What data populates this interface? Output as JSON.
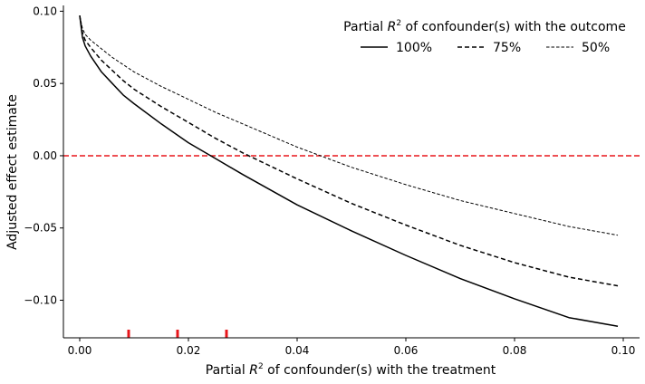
{
  "chart_data": {
    "type": "line",
    "xlabel": {
      "pre": "Partial ",
      "var": "R",
      "sup": "2",
      "post": " of confounder(s) with the treatment"
    },
    "ylabel": "Adjusted effect estimate",
    "xlim": [
      -0.003,
      0.103
    ],
    "ylim": [
      -0.126,
      0.104
    ],
    "xticks": [
      0.0,
      0.02,
      0.04,
      0.06,
      0.08,
      0.1
    ],
    "xtick_labels": [
      "0.00",
      "0.02",
      "0.04",
      "0.06",
      "0.08",
      "0.10"
    ],
    "yticks": [
      -0.1,
      -0.05,
      0.0,
      0.05,
      0.1
    ],
    "ytick_labels": [
      "−0.10",
      "−0.05",
      "0.00",
      "0.05",
      "0.10"
    ],
    "legend": {
      "title": {
        "pre": "Partial ",
        "var": "R",
        "sup": "2",
        "post": " of confounder(s) with the outcome"
      },
      "placement": "top-right",
      "entries": [
        "100%",
        "75%",
        "50%"
      ]
    },
    "series": [
      {
        "name": "100%",
        "style": "solid",
        "color": "#000000",
        "x": [
          0,
          0.0005,
          0.001,
          0.002,
          0.004,
          0.006,
          0.008,
          0.01,
          0.015,
          0.02,
          0.025,
          0.03,
          0.04,
          0.05,
          0.06,
          0.07,
          0.08,
          0.09,
          0.099
        ],
        "y": [
          0.097,
          0.082,
          0.076,
          0.069,
          0.058,
          0.05,
          0.042,
          0.036,
          0.022,
          0.009,
          -0.002,
          -0.013,
          -0.034,
          -0.052,
          -0.069,
          -0.085,
          -0.099,
          -0.112,
          -0.118
        ]
      },
      {
        "name": "75%",
        "style": "dashed",
        "color": "#000000",
        "x": [
          0,
          0.0005,
          0.001,
          0.002,
          0.004,
          0.006,
          0.008,
          0.01,
          0.015,
          0.02,
          0.025,
          0.03,
          0.04,
          0.05,
          0.06,
          0.07,
          0.08,
          0.09,
          0.099
        ],
        "y": [
          0.097,
          0.085,
          0.08,
          0.075,
          0.066,
          0.059,
          0.052,
          0.046,
          0.034,
          0.023,
          0.012,
          0.002,
          -0.016,
          -0.033,
          -0.048,
          -0.062,
          -0.074,
          -0.084,
          -0.09
        ]
      },
      {
        "name": "50%",
        "style": "dashed-thin",
        "color": "#000000",
        "x": [
          0,
          0.0005,
          0.001,
          0.002,
          0.004,
          0.006,
          0.008,
          0.01,
          0.015,
          0.02,
          0.025,
          0.03,
          0.04,
          0.05,
          0.06,
          0.07,
          0.08,
          0.09,
          0.099
        ],
        "y": [
          0.097,
          0.088,
          0.084,
          0.08,
          0.074,
          0.068,
          0.063,
          0.058,
          0.048,
          0.039,
          0.03,
          0.022,
          0.006,
          -0.008,
          -0.02,
          -0.031,
          -0.04,
          -0.049,
          -0.055
        ]
      }
    ],
    "reference_line": {
      "y": 0.0,
      "color": "#e8161b",
      "style": "dashed"
    },
    "rug_marks": {
      "x": [
        0.009,
        0.018,
        0.027
      ],
      "color": "#e8161b"
    }
  }
}
